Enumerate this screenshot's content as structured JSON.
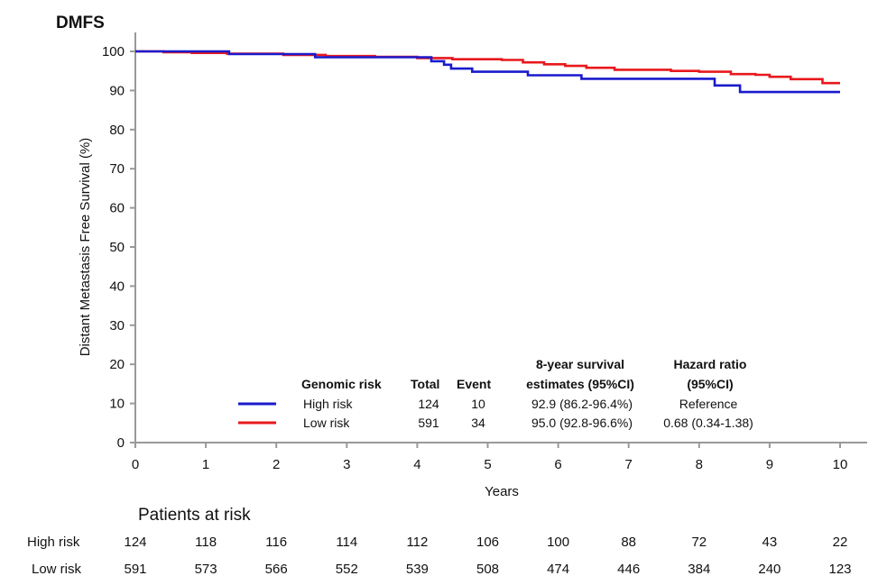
{
  "chart_data": {
    "type": "line",
    "title": "DMFS",
    "xlabel": "Years",
    "ylabel": "Distant Metastasis Free Survival (%)",
    "xlim": [
      0,
      10
    ],
    "ylim": [
      0,
      100
    ],
    "xticks": [
      0,
      1,
      2,
      3,
      4,
      5,
      6,
      7,
      8,
      9,
      10
    ],
    "yticks": [
      0,
      10,
      20,
      30,
      40,
      50,
      60,
      70,
      80,
      90,
      100
    ],
    "grid": false,
    "series": [
      {
        "name": "High risk",
        "color": "#1a1acd",
        "step": true,
        "x": [
          0,
          1.33,
          1.33,
          2.55,
          2.55,
          4.2,
          4.2,
          4.38,
          4.38,
          4.48,
          4.48,
          4.78,
          4.78,
          5.57,
          5.57,
          6.33,
          6.33,
          8.22,
          8.22,
          8.58,
          8.58,
          10
        ],
        "y": [
          100,
          100,
          99.3,
          99.3,
          98.5,
          98.5,
          97.5,
          97.5,
          96.6,
          96.6,
          95.6,
          95.6,
          94.8,
          94.8,
          93.9,
          93.9,
          93.0,
          93.0,
          91.3,
          91.3,
          89.6,
          89.6
        ]
      },
      {
        "name": "Low risk",
        "color": "#e8181c",
        "step": true,
        "x": [
          0,
          0.4,
          0.4,
          0.8,
          0.8,
          1.3,
          1.3,
          2.1,
          2.1,
          2.7,
          2.7,
          3.4,
          3.4,
          4.0,
          4.0,
          4.5,
          4.5,
          5.2,
          5.2,
          5.5,
          5.5,
          5.8,
          5.8,
          6.1,
          6.1,
          6.4,
          6.4,
          6.8,
          6.8,
          7.6,
          7.6,
          8.0,
          8.0,
          8.45,
          8.45,
          8.8,
          8.8,
          9.0,
          9.0,
          9.3,
          9.3,
          9.75,
          9.75,
          10
        ],
        "y": [
          100,
          100,
          99.8,
          99.8,
          99.6,
          99.6,
          99.4,
          99.4,
          99.1,
          99.1,
          98.8,
          98.8,
          98.6,
          98.6,
          98.3,
          98.3,
          98.0,
          98.0,
          97.8,
          97.8,
          97.2,
          97.2,
          96.7,
          96.7,
          96.3,
          96.3,
          95.8,
          95.8,
          95.3,
          95.3,
          95.0,
          95.0,
          94.8,
          94.8,
          94.2,
          94.2,
          94.0,
          94.0,
          93.5,
          93.5,
          92.9,
          92.9,
          91.9,
          91.9
        ]
      }
    ],
    "legend": {
      "placement": "bottom-center",
      "headers": {
        "group": "Genomic risk",
        "total": "Total",
        "event": "Event",
        "surv_line1": "8-year survival",
        "surv_line2": "estimates (95%CI)",
        "hr_line1": "Hazard ratio",
        "hr_line2": "(95%CI)"
      },
      "rows": [
        {
          "label": "High risk",
          "total": "124",
          "event": "10",
          "surv": "92.9 (86.2-96.4%)",
          "hr": "Reference"
        },
        {
          "label": "Low risk",
          "total": "591",
          "event": "34",
          "surv": "95.0 (92.8-96.6%)",
          "hr": "0.68 (0.34-1.38)"
        }
      ]
    },
    "risk_table": {
      "title": "Patients at risk",
      "rows": [
        {
          "label": "High risk",
          "values": [
            "124",
            "118",
            "116",
            "114",
            "112",
            "106",
            "100",
            "88",
            "72",
            "43",
            "22"
          ]
        },
        {
          "label": "Low risk",
          "values": [
            "591",
            "573",
            "566",
            "552",
            "539",
            "508",
            "474",
            "446",
            "384",
            "240",
            "123"
          ]
        }
      ]
    }
  }
}
